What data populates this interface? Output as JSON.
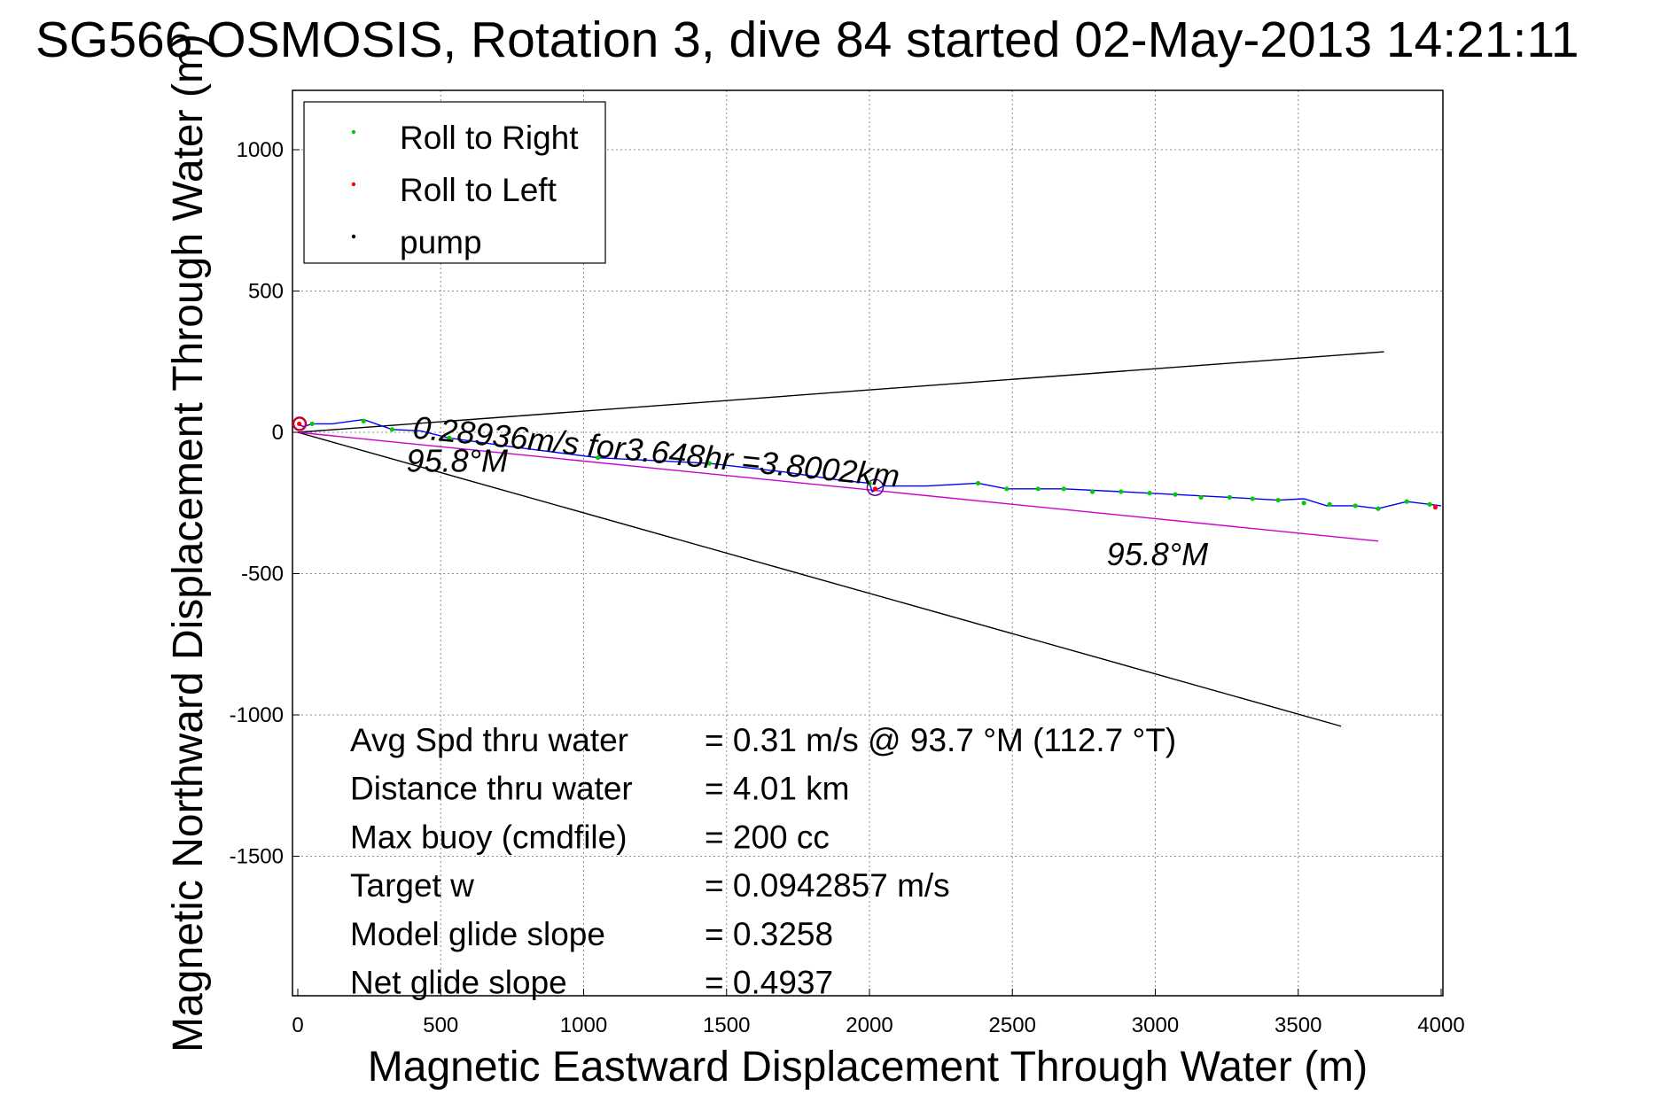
{
  "chart_data": {
    "type": "scatter",
    "title": "SG566 OSMOSIS, Rotation 3, dive 84 started 02-May-2013 14:21:11",
    "xlabel": "Magnetic Eastward Displacement Through Water (m)",
    "ylabel": "Magnetic Northward Displacement Through Water (m)",
    "xlim": [
      0,
      4000
    ],
    "ylim": [
      -2000,
      1200
    ],
    "xticks": [
      0,
      500,
      1000,
      1500,
      2000,
      2500,
      3000,
      3500,
      4000
    ],
    "yticks": [
      1000,
      500,
      0,
      -500,
      -1000,
      -1500
    ],
    "grid": true,
    "legend_position": "top-left",
    "legend": [
      {
        "label": "Roll to Right",
        "color": "#00cc00"
      },
      {
        "label": "Roll to Left",
        "color": "#ff0000"
      },
      {
        "label": "pump",
        "color": "#000000"
      }
    ],
    "series": [
      {
        "name": "Roll to Right",
        "color": "#00cc00",
        "points": [
          [
            50,
            30
          ],
          [
            230,
            40
          ],
          [
            330,
            10
          ],
          [
            530,
            -20
          ],
          [
            1050,
            -90
          ],
          [
            1440,
            -110
          ],
          [
            2000,
            -180
          ],
          [
            2380,
            -180
          ],
          [
            2480,
            -200
          ],
          [
            2590,
            -200
          ],
          [
            2680,
            -200
          ],
          [
            2780,
            -210
          ],
          [
            2880,
            -210
          ],
          [
            2980,
            -215
          ],
          [
            3070,
            -220
          ],
          [
            3160,
            -230
          ],
          [
            3260,
            -230
          ],
          [
            3340,
            -235
          ],
          [
            3430,
            -240
          ],
          [
            3520,
            -250
          ],
          [
            3610,
            -255
          ],
          [
            3700,
            -260
          ],
          [
            3780,
            -270
          ],
          [
            3880,
            -245
          ],
          [
            3960,
            -255
          ]
        ]
      },
      {
        "name": "Roll to Left",
        "color": "#ff0000",
        "points": [
          [
            5,
            30
          ],
          [
            2020,
            -200
          ],
          [
            3980,
            -265
          ]
        ]
      }
    ],
    "track": {
      "color": "#0000ff",
      "points": [
        [
          0,
          30
        ],
        [
          20,
          20
        ],
        [
          50,
          30
        ],
        [
          120,
          30
        ],
        [
          230,
          45
        ],
        [
          330,
          10
        ],
        [
          430,
          5
        ],
        [
          530,
          -20
        ],
        [
          740,
          -50
        ],
        [
          1050,
          -90
        ],
        [
          1250,
          -100
        ],
        [
          1440,
          -110
        ],
        [
          1700,
          -140
        ],
        [
          1900,
          -170
        ],
        [
          2000,
          -180
        ],
        [
          2010,
          -210
        ],
        [
          2050,
          -190
        ],
        [
          2200,
          -190
        ],
        [
          2380,
          -180
        ],
        [
          2480,
          -200
        ],
        [
          2680,
          -200
        ],
        [
          2880,
          -210
        ],
        [
          3070,
          -220
        ],
        [
          3260,
          -230
        ],
        [
          3430,
          -240
        ],
        [
          3520,
          -235
        ],
        [
          3600,
          -260
        ],
        [
          3700,
          -260
        ],
        [
          3780,
          -270
        ],
        [
          3880,
          -245
        ],
        [
          3960,
          -255
        ],
        [
          4000,
          -260
        ]
      ]
    },
    "reference_lines": [
      {
        "color": "#000000",
        "from": [
          0,
          0
        ],
        "to": [
          3800,
          285
        ]
      },
      {
        "color": "#000000",
        "from": [
          0,
          0
        ],
        "to": [
          3650,
          -1040
        ]
      },
      {
        "color": "#cc00cc",
        "from": [
          0,
          0
        ],
        "to": [
          3780,
          -385
        ]
      }
    ],
    "annotations": [
      {
        "text": "0.28936m/s for3.648hr =3.8002km",
        "x": 400,
        "y": -20,
        "rotate": 5.8
      },
      {
        "text": "95.8°M",
        "x": 380,
        "y": -140,
        "rotate": 0
      },
      {
        "text": "95.8°M",
        "x": 2830,
        "y": -470,
        "rotate": 0
      }
    ],
    "stats": [
      {
        "label": "Avg Spd thru water",
        "value": "=  0.31 m/s @  93.7 °M (112.7 °T)"
      },
      {
        "label": "Distance thru water",
        "value": "=  4.01 km"
      },
      {
        "label": "Max buoy (cmdfile)",
        "value": "= 200 cc"
      },
      {
        "label": "Target w",
        "value": "= 0.0942857 m/s"
      },
      {
        "label": "Model glide slope",
        "value": "= 0.3258"
      },
      {
        "label": "Net glide slope",
        "value": "= 0.4937"
      }
    ]
  }
}
